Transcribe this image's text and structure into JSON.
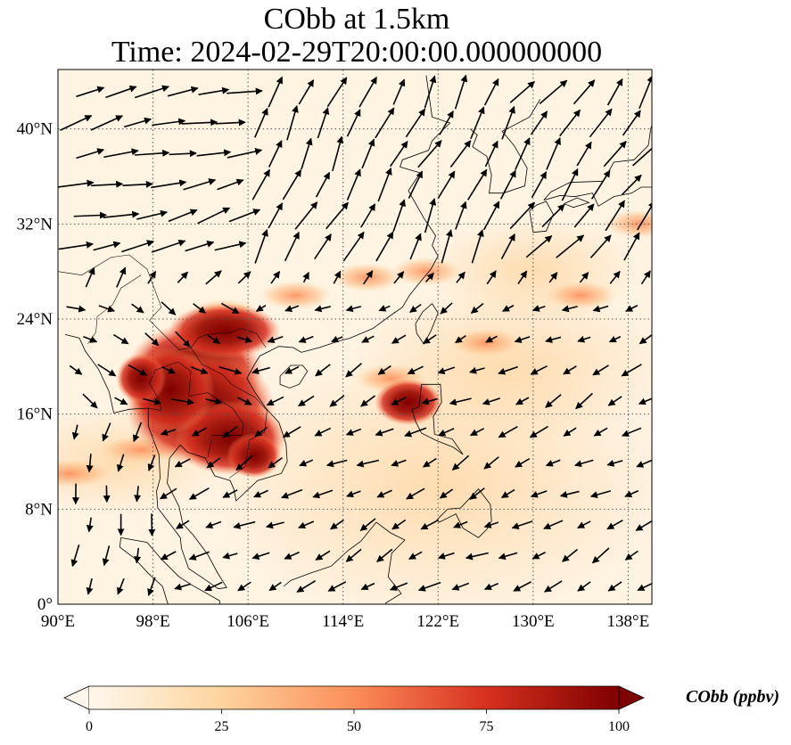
{
  "title": {
    "line1": "CObb at 1.5km",
    "line2": "Time: 2024-02-29T20:00:00.000000000"
  },
  "map": {
    "projection": "PlateCarree",
    "lon_range": [
      90,
      140
    ],
    "lat_range": [
      0,
      45
    ],
    "gridlines": "dotted",
    "lon_ticks": [
      "90°E",
      "98°E",
      "106°E",
      "114°E",
      "122°E",
      "130°E",
      "138°E"
    ],
    "lat_ticks": [
      "0°",
      "8°N",
      "16°N",
      "24°N",
      "32°N",
      "40°N"
    ],
    "coastlines": true,
    "country_borders": true
  },
  "field": {
    "variable": "CObb",
    "colormap": "OrRd",
    "colors": [
      "#fff7ec",
      "#fdd49e",
      "#fc8d59",
      "#d7301f",
      "#7f0000"
    ]
  },
  "colorbar": {
    "label": "CObb (ppbv)",
    "ticks": [
      "0",
      "25",
      "50",
      "75",
      "100"
    ],
    "range": [
      0,
      100
    ],
    "extend": "both"
  },
  "wind": {
    "arrow_color": "#000000",
    "pattern": [
      {
        "region": "north-west (90-105E, 28-40N)",
        "direction_deg": 20,
        "speed": "strong"
      },
      {
        "region": "north-east (108-128E, 30-44N)",
        "direction_deg": 295,
        "speed": "strong"
      },
      {
        "region": "japan (128-140E, 26-38N)",
        "direction_deg": 35,
        "speed": "strong"
      },
      {
        "region": "south-china-sea (108-130E, 2-24N)",
        "direction_deg": 160,
        "speed": "moderate"
      },
      {
        "region": "bay-of-bengal (90-100E, 4-16N)",
        "direction_deg": 185,
        "speed": "moderate"
      }
    ]
  },
  "plumes": [
    {
      "name": "indochina",
      "lon": 101.5,
      "lat": 17.5,
      "level": 100
    },
    {
      "name": "luzon",
      "lon": 119.5,
      "lat": 17,
      "level": 85
    },
    {
      "name": "south-china-band",
      "lon": 112,
      "lat": 25.5,
      "level": 55
    }
  ]
}
